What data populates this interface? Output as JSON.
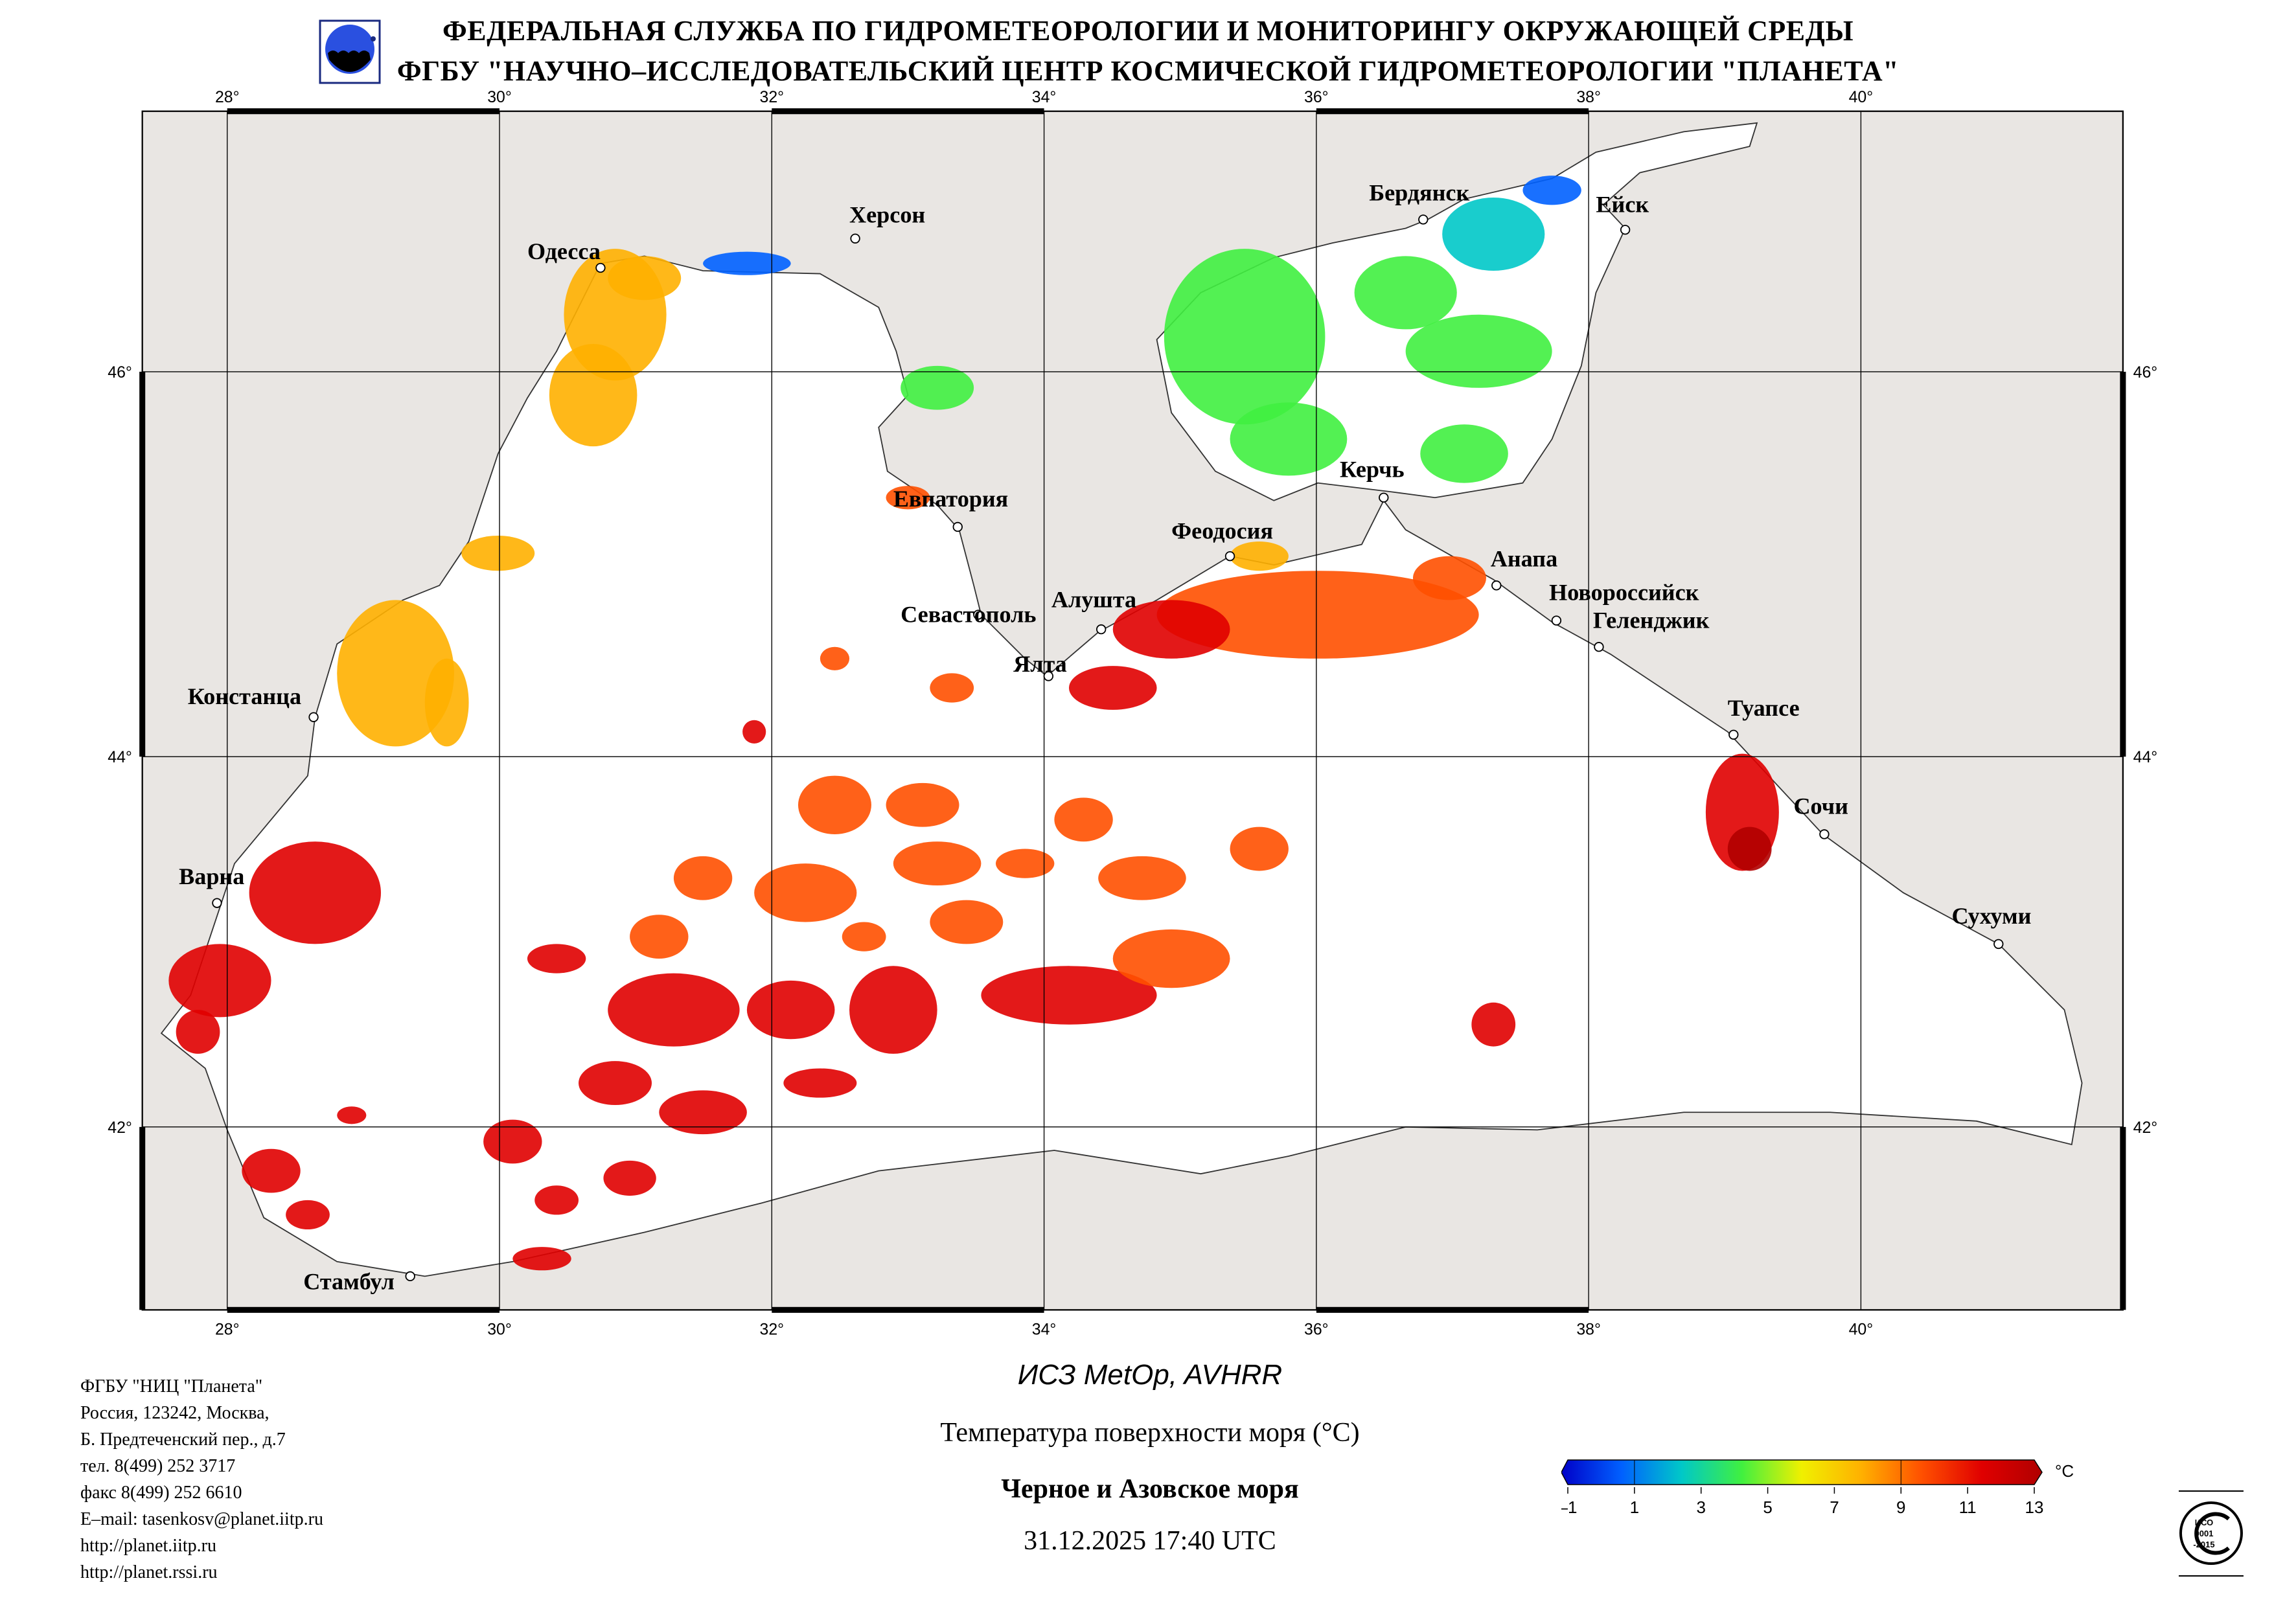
{
  "header": {
    "line1": "ФЕДЕРАЛЬНАЯ СЛУЖБА ПО ГИДРОМЕТЕОРОЛОГИИ И МОНИТОРИНГУ ОКРУЖАЮЩЕЙ СРЕДЫ",
    "line2": "ФГБУ \"НАУЧНО–ИССЛЕДОВАТЕЛЬСКИЙ ЦЕНТР КОСМИЧЕСКОЙ ГИДРОМЕТЕОРОЛОГИИ \"ПЛАНЕТА\""
  },
  "map": {
    "lon_labels": [
      "28°",
      "30°",
      "32°",
      "34°",
      "36°",
      "38°",
      "40°"
    ],
    "lat_labels": [
      "46°",
      "44°",
      "42°"
    ],
    "cities": [
      "Одесса",
      "Херсон",
      "Бердянск",
      "Ейск",
      "Евпатория",
      "Керчь",
      "Феодосия",
      "Анапа",
      "Новороссийск",
      "Геленджик",
      "Севастополь",
      "Алушта",
      "Ялта",
      "Констанца",
      "Туапсе",
      "Сочи",
      "Варна",
      "Сухуми",
      "Стамбул"
    ],
    "colors": {
      "land": "#e9e6e3",
      "sea": "#ffffff",
      "grid": "#000000"
    }
  },
  "footer": {
    "address": [
      "ФГБУ \"НИЦ \"Планета\"",
      "Россия, 123242, Москва,",
      "Б. Предтеченский пер., д.7",
      "тел. 8(499) 252 3717",
      "факс 8(499) 252 6610",
      "E–mail: tasenkosv@planet.iitp.ru",
      "http://planet.iitp.ru",
      "http://planet.rssi.ru"
    ],
    "satellite": "ИСЗ MetOp, AVHRR",
    "product": "Температура поверхности моря (°C)",
    "region": "Черное и Азовское моря",
    "datetime": "31.12.2025 17:40 UTC"
  },
  "colorbar": {
    "unit": "°C",
    "min": -1,
    "max": 13,
    "ticks": [
      "–1",
      "1",
      "3",
      "5",
      "7",
      "9",
      "11",
      "13"
    ],
    "colors": [
      "#0000c8",
      "#0060ff",
      "#00c8c8",
      "#40f040",
      "#f0f000",
      "#ffb000",
      "#ff5000",
      "#e00000",
      "#b00000"
    ]
  },
  "iso_badge": {
    "text": [
      "ИСО",
      "9001",
      "-2015"
    ]
  }
}
